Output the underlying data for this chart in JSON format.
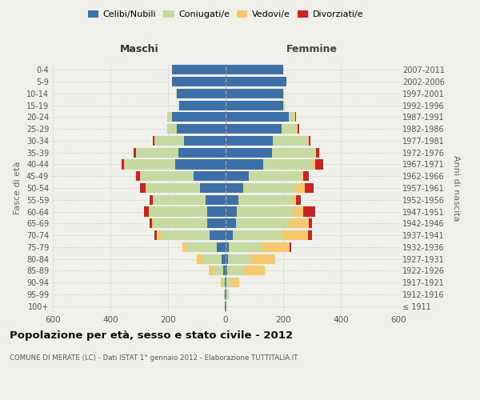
{
  "age_groups": [
    "100+",
    "95-99",
    "90-94",
    "85-89",
    "80-84",
    "75-79",
    "70-74",
    "65-69",
    "60-64",
    "55-59",
    "50-54",
    "45-49",
    "40-44",
    "35-39",
    "30-34",
    "25-29",
    "20-24",
    "15-19",
    "10-14",
    "5-9",
    "0-4"
  ],
  "birth_years": [
    "≤ 1911",
    "1912-1916",
    "1917-1921",
    "1922-1926",
    "1927-1931",
    "1932-1936",
    "1937-1941",
    "1942-1946",
    "1947-1951",
    "1952-1956",
    "1957-1961",
    "1962-1966",
    "1967-1971",
    "1972-1976",
    "1977-1981",
    "1982-1986",
    "1987-1991",
    "1992-1996",
    "1997-2001",
    "2002-2006",
    "2007-2011"
  ],
  "maschi": {
    "celibi": [
      2,
      2,
      3,
      8,
      15,
      30,
      55,
      65,
      65,
      70,
      90,
      110,
      175,
      165,
      145,
      170,
      185,
      160,
      170,
      185,
      185
    ],
    "coniugati": [
      1,
      3,
      10,
      35,
      65,
      105,
      170,
      185,
      195,
      180,
      185,
      185,
      175,
      145,
      100,
      30,
      15,
      5,
      3,
      2,
      1
    ],
    "vedovi": [
      0,
      0,
      5,
      15,
      20,
      15,
      15,
      5,
      8,
      3,
      3,
      2,
      2,
      2,
      2,
      2,
      2,
      0,
      0,
      0,
      0
    ],
    "divorziati": [
      0,
      0,
      0,
      0,
      0,
      0,
      8,
      10,
      15,
      10,
      20,
      15,
      10,
      8,
      5,
      2,
      2,
      0,
      0,
      0,
      0
    ]
  },
  "femmine": {
    "nubili": [
      2,
      2,
      3,
      5,
      8,
      12,
      25,
      35,
      40,
      45,
      60,
      80,
      130,
      160,
      165,
      195,
      220,
      200,
      200,
      210,
      200
    ],
    "coniugate": [
      1,
      5,
      20,
      60,
      80,
      115,
      175,
      185,
      195,
      185,
      185,
      185,
      175,
      150,
      120,
      50,
      20,
      5,
      2,
      2,
      1
    ],
    "vedove": [
      0,
      3,
      25,
      70,
      85,
      95,
      85,
      70,
      35,
      15,
      30,
      5,
      5,
      5,
      5,
      5,
      3,
      0,
      0,
      0,
      0
    ],
    "divorziate": [
      0,
      0,
      0,
      0,
      0,
      5,
      15,
      10,
      40,
      15,
      30,
      20,
      30,
      10,
      5,
      5,
      2,
      0,
      0,
      0,
      0
    ]
  },
  "colors": {
    "celibi": "#3d6fa8",
    "coniugati": "#c5d9a0",
    "vedovi": "#f5c86e",
    "divorziati": "#cc2222"
  },
  "xlim": 600,
  "title": "Popolazione per età, sesso e stato civile - 2012",
  "subtitle": "COMUNE DI MERATE (LC) - Dati ISTAT 1° gennaio 2012 - Elaborazione TUTTITALIA.IT",
  "xlabel_left": "Maschi",
  "xlabel_right": "Femmine",
  "ylabel_left": "Fasce di età",
  "ylabel_right": "Anni di nascita",
  "legend_labels": [
    "Celibi/Nubili",
    "Coniugati/e",
    "Vedovi/e",
    "Divorziati/e"
  ],
  "background_color": "#f0f0eb"
}
